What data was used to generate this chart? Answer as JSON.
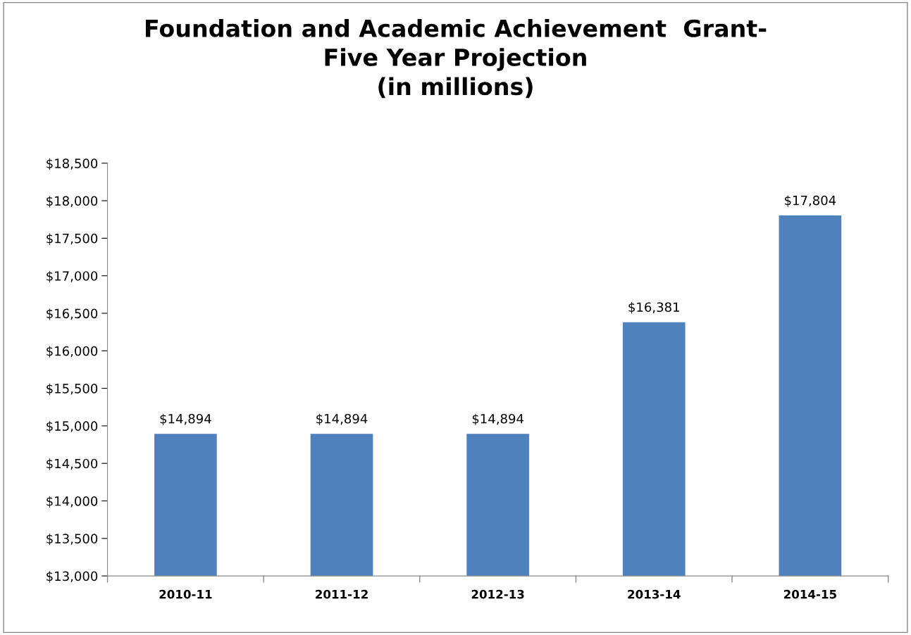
{
  "chart_data": {
    "type": "bar",
    "title": "Foundation and Academic Achievement  Grant-\nFive Year Projection\n(in millions)",
    "categories": [
      "2010-11",
      "2011-12",
      "2012-13",
      "2013-14",
      "2014-15"
    ],
    "values": [
      14894,
      14894,
      14894,
      16381,
      17804
    ],
    "value_labels": [
      "$14,894",
      "$14,894",
      "$14,894",
      "$16,381",
      "$17,804"
    ],
    "color": "#4f81bd",
    "ylim": [
      13000,
      18500
    ],
    "yticks": [
      {
        "value": 13000,
        "label": "$13,000"
      },
      {
        "value": 13500,
        "label": "$13,500"
      },
      {
        "value": 14000,
        "label": "$14,000"
      },
      {
        "value": 14500,
        "label": "$14,500"
      },
      {
        "value": 15000,
        "label": "$15,000"
      },
      {
        "value": 15500,
        "label": "$15,500"
      },
      {
        "value": 16000,
        "label": "$16,000"
      },
      {
        "value": 16500,
        "label": "$16,500"
      },
      {
        "value": 17000,
        "label": "$17,000"
      },
      {
        "value": 17500,
        "label": "$17,500"
      },
      {
        "value": 18000,
        "label": "$18,000"
      },
      {
        "value": 18500,
        "label": "$18,500"
      }
    ],
    "grid": false,
    "legend": false
  }
}
